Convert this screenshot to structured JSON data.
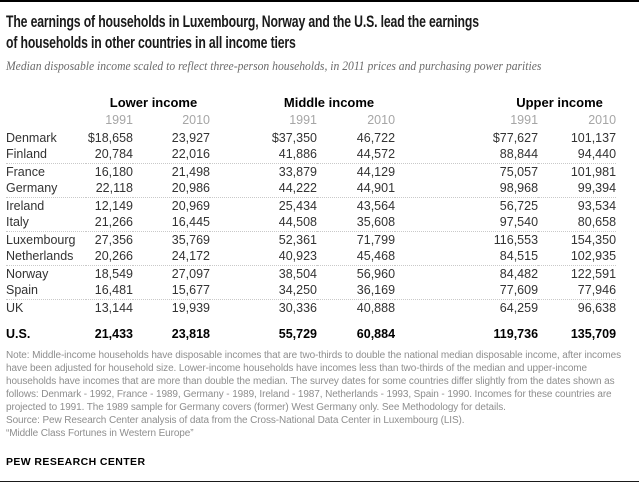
{
  "header": {
    "title": "The earnings of households in Luxembourg, Norway and the U.S. lead the earnings\nof households in other countries in all income tiers",
    "subtitle": "Median disposable income scaled to reflect three-person households, in 2011 prices and purchasing power parities"
  },
  "chart_data": {
    "type": "table",
    "title": "The earnings of households in Luxembourg, Norway and the U.S. lead the earnings of households in other countries in all income tiers",
    "subtitle": "Median disposable income scaled to reflect three-person households, in 2011 prices and purchasing power parities",
    "unit": "median disposable income, 2011 prices and purchasing power parities (USD)",
    "column_groups": [
      {
        "label": "Lower income",
        "years": [
          "1991",
          "2010"
        ]
      },
      {
        "label": "Middle income",
        "years": [
          "1991",
          "2010"
        ]
      },
      {
        "label": "Upper income",
        "years": [
          "1991",
          "2010"
        ]
      }
    ],
    "rows": [
      {
        "country": "Denmark",
        "values": [
          "$18,658",
          "23,927",
          "$37,350",
          "46,722",
          "$77,627",
          "101,137"
        ]
      },
      {
        "country": "Finland",
        "values": [
          "20,784",
          "22,016",
          "41,886",
          "44,572",
          "88,844",
          "94,440"
        ]
      },
      {
        "country": "France",
        "values": [
          "16,180",
          "21,498",
          "33,879",
          "44,129",
          "75,057",
          "101,981"
        ]
      },
      {
        "country": "Germany",
        "values": [
          "22,118",
          "20,986",
          "44,222",
          "44,901",
          "98,968",
          "99,394"
        ]
      },
      {
        "country": "Ireland",
        "values": [
          "12,149",
          "20,969",
          "25,434",
          "43,564",
          "56,725",
          "93,534"
        ]
      },
      {
        "country": "Italy",
        "values": [
          "21,266",
          "16,445",
          "44,508",
          "35,608",
          "97,540",
          "80,658"
        ]
      },
      {
        "country": "Luxembourg",
        "values": [
          "27,356",
          "35,769",
          "52,361",
          "71,799",
          "116,553",
          "154,350"
        ]
      },
      {
        "country": "Netherlands",
        "values": [
          "20,266",
          "24,172",
          "40,923",
          "45,468",
          "84,515",
          "102,935"
        ]
      },
      {
        "country": "Norway",
        "values": [
          "18,549",
          "27,097",
          "38,504",
          "56,960",
          "84,482",
          "122,591"
        ]
      },
      {
        "country": "Spain",
        "values": [
          "16,481",
          "15,677",
          "34,250",
          "36,169",
          "77,609",
          "77,946"
        ]
      },
      {
        "country": "UK",
        "values": [
          "13,144",
          "19,939",
          "30,336",
          "40,888",
          "64,259",
          "96,638"
        ]
      },
      {
        "country": "U.S.",
        "values": [
          "21,433",
          "23,818",
          "55,729",
          "60,884",
          "119,736",
          "135,709"
        ],
        "emphasis": true
      }
    ]
  },
  "notes": {
    "note": "Note: Middle-income households have disposable incomes that are two-thirds to double the national median disposable income, after incomes have been adjusted for household size. Lower-income households have incomes less than two-thirds of the median and upper-income households have incomes that are more than double the median. The survey dates for some countries differ slightly from the dates shown as follows: Denmark - 1992, France - 1989, Germany - 1989, Ireland - 1987, Netherlands - 1993, Spain - 1990. Incomes for these countries are projected to 1991. The 1989 sample for Germany covers (former) West Germany only. See Methodology for details.",
    "source": "Source: Pew Research Center analysis of data from the Cross-National Data Center in Luxembourg (LIS).",
    "report": "“Middle Class Fortunes in Western Europe”"
  },
  "footer": {
    "wordmark": "PEW RESEARCH CENTER"
  },
  "colors": {
    "rule": "#000000",
    "title_text": "#1a1a1a",
    "subtitle_text": "#6b6b6b",
    "group_header_text": "#000000",
    "year_header_text": "#a6a6a6",
    "body_text": "#333333",
    "note_text": "#8e8e8e",
    "dotted_separator": "#c9c9c9"
  }
}
